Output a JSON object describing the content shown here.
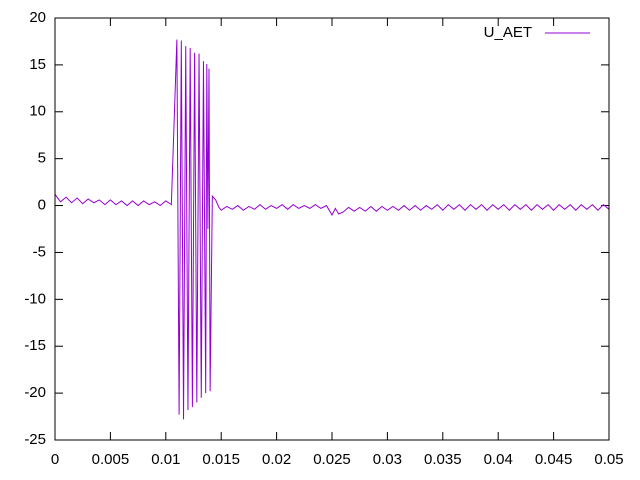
{
  "chart_data": {
    "type": "line",
    "x": [
      0,
      0.0005,
      0.001,
      0.0015,
      0.002,
      0.0025,
      0.003,
      0.0035,
      0.004,
      0.0045,
      0.005,
      0.0055,
      0.006,
      0.0065,
      0.007,
      0.0075,
      0.008,
      0.0085,
      0.009,
      0.0095,
      0.01,
      0.0105,
      0.011,
      0.0112,
      0.0114,
      0.0116,
      0.0118,
      0.012,
      0.0122,
      0.0124,
      0.0126,
      0.0128,
      0.013,
      0.0132,
      0.0134,
      0.0136,
      0.0137,
      0.0138,
      0.0139,
      0.014,
      0.0142,
      0.0145,
      0.0148,
      0.015,
      0.0155,
      0.016,
      0.0165,
      0.017,
      0.0175,
      0.018,
      0.0185,
      0.019,
      0.0195,
      0.02,
      0.0205,
      0.021,
      0.0215,
      0.022,
      0.0225,
      0.023,
      0.0235,
      0.024,
      0.0245,
      0.025,
      0.0253,
      0.0256,
      0.026,
      0.0265,
      0.027,
      0.0275,
      0.028,
      0.0285,
      0.029,
      0.0295,
      0.03,
      0.0305,
      0.031,
      0.0315,
      0.032,
      0.0325,
      0.033,
      0.0335,
      0.034,
      0.0345,
      0.035,
      0.0355,
      0.036,
      0.0365,
      0.037,
      0.0375,
      0.038,
      0.0385,
      0.039,
      0.0395,
      0.04,
      0.0405,
      0.041,
      0.0415,
      0.042,
      0.0425,
      0.043,
      0.0435,
      0.044,
      0.0445,
      0.045,
      0.0455,
      0.046,
      0.0465,
      0.047,
      0.0475,
      0.048,
      0.0485,
      0.049,
      0.0495,
      0.05
    ],
    "series": [
      {
        "name": "U_AET",
        "color": "#9400d3",
        "values": [
          1.2,
          0.4,
          0.9,
          0.3,
          0.8,
          0.2,
          0.7,
          0.3,
          0.6,
          0.1,
          0.6,
          0.1,
          0.5,
          0.0,
          0.5,
          0.0,
          0.5,
          0.1,
          0.4,
          0.0,
          0.5,
          0.1,
          17.7,
          -22.3,
          17.6,
          -22.8,
          17.0,
          -21.8,
          16.8,
          -21.5,
          16.3,
          -21.0,
          16.2,
          -20.5,
          15.4,
          -20.0,
          15.1,
          -2.5,
          14.6,
          -19.8,
          1.0,
          0.6,
          -0.2,
          -0.5,
          -0.1,
          -0.4,
          0.0,
          -0.5,
          -0.1,
          -0.4,
          0.1,
          -0.4,
          0.0,
          -0.3,
          0.1,
          -0.4,
          0.1,
          -0.3,
          0.0,
          -0.3,
          0.1,
          -0.3,
          0.0,
          -1.0,
          -0.3,
          -0.9,
          -0.7,
          -0.2,
          -0.6,
          -0.2,
          -0.6,
          -0.1,
          -0.6,
          -0.1,
          -0.5,
          -0.1,
          -0.5,
          0.0,
          -0.5,
          0.0,
          -0.5,
          0.0,
          -0.4,
          0.1,
          -0.5,
          0.1,
          -0.4,
          0.1,
          -0.5,
          0.1,
          -0.4,
          0.1,
          -0.5,
          0.1,
          -0.4,
          0.1,
          -0.5,
          0.1,
          -0.4,
          0.1,
          -0.5,
          0.1,
          -0.4,
          0.1,
          -0.5,
          0.1,
          -0.4,
          0.1,
          -0.5,
          0.1,
          -0.4,
          0.1,
          -0.5,
          0.1,
          -0.4
        ]
      }
    ],
    "xlim": [
      0,
      0.05
    ],
    "xticks": [
      0,
      0.005,
      0.01,
      0.015,
      0.02,
      0.025,
      0.03,
      0.035,
      0.04,
      0.045,
      0.05
    ],
    "ylim": [
      -25,
      20
    ],
    "yticks": [
      -25,
      -20,
      -15,
      -10,
      -5,
      0,
      5,
      10,
      15,
      20
    ],
    "legend": "top-right"
  }
}
